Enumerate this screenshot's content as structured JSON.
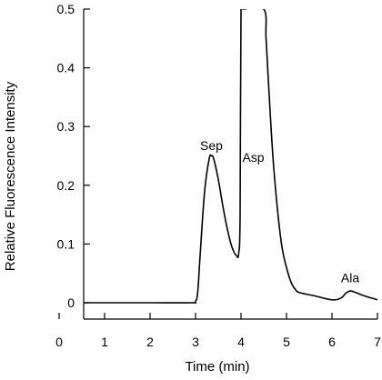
{
  "chart_data": {
    "type": "line",
    "title": "",
    "xlabel": "Time (min)",
    "ylabel": "Relative Fluorescence Intensity",
    "xlim": [
      0,
      7
    ],
    "ylim": [
      0,
      0.5
    ],
    "x_ticks": [
      "0",
      "1",
      "2",
      "3",
      "4",
      "5",
      "6",
      "7"
    ],
    "y_ticks": [
      "0",
      "0.1",
      "0.2",
      "0.3",
      "0.4",
      "0.5"
    ],
    "grid": false,
    "series": [
      {
        "x": [
          0,
          1,
          2,
          2.9,
          3.0,
          3.05,
          3.1,
          3.2,
          3.3,
          3.35,
          3.4,
          3.5,
          3.6,
          3.7,
          3.8,
          3.9,
          3.95,
          3.98,
          4.0,
          4.05,
          4.5,
          4.55,
          4.6,
          4.7,
          4.8,
          4.9,
          5.0,
          5.1,
          5.2,
          5.3,
          5.6,
          6.0,
          6.2,
          6.3,
          6.4,
          6.5,
          6.7,
          7.0
        ],
        "y": [
          0,
          0,
          0,
          0,
          0.002,
          0.02,
          0.08,
          0.19,
          0.245,
          0.25,
          0.245,
          0.21,
          0.165,
          0.125,
          0.095,
          0.08,
          0.085,
          0.15,
          0.5,
          0.5,
          0.5,
          0.45,
          0.38,
          0.25,
          0.16,
          0.095,
          0.06,
          0.035,
          0.022,
          0.017,
          0.012,
          0.005,
          0.008,
          0.016,
          0.02,
          0.018,
          0.012,
          0.005
        ]
      }
    ],
    "annotations": [
      {
        "text": "Sep",
        "x": 3.35,
        "y": 0.26
      },
      {
        "text": "Asp",
        "x": 4.27,
        "y": 0.24
      },
      {
        "text": "Ala",
        "x": 6.4,
        "y": 0.035
      }
    ]
  }
}
